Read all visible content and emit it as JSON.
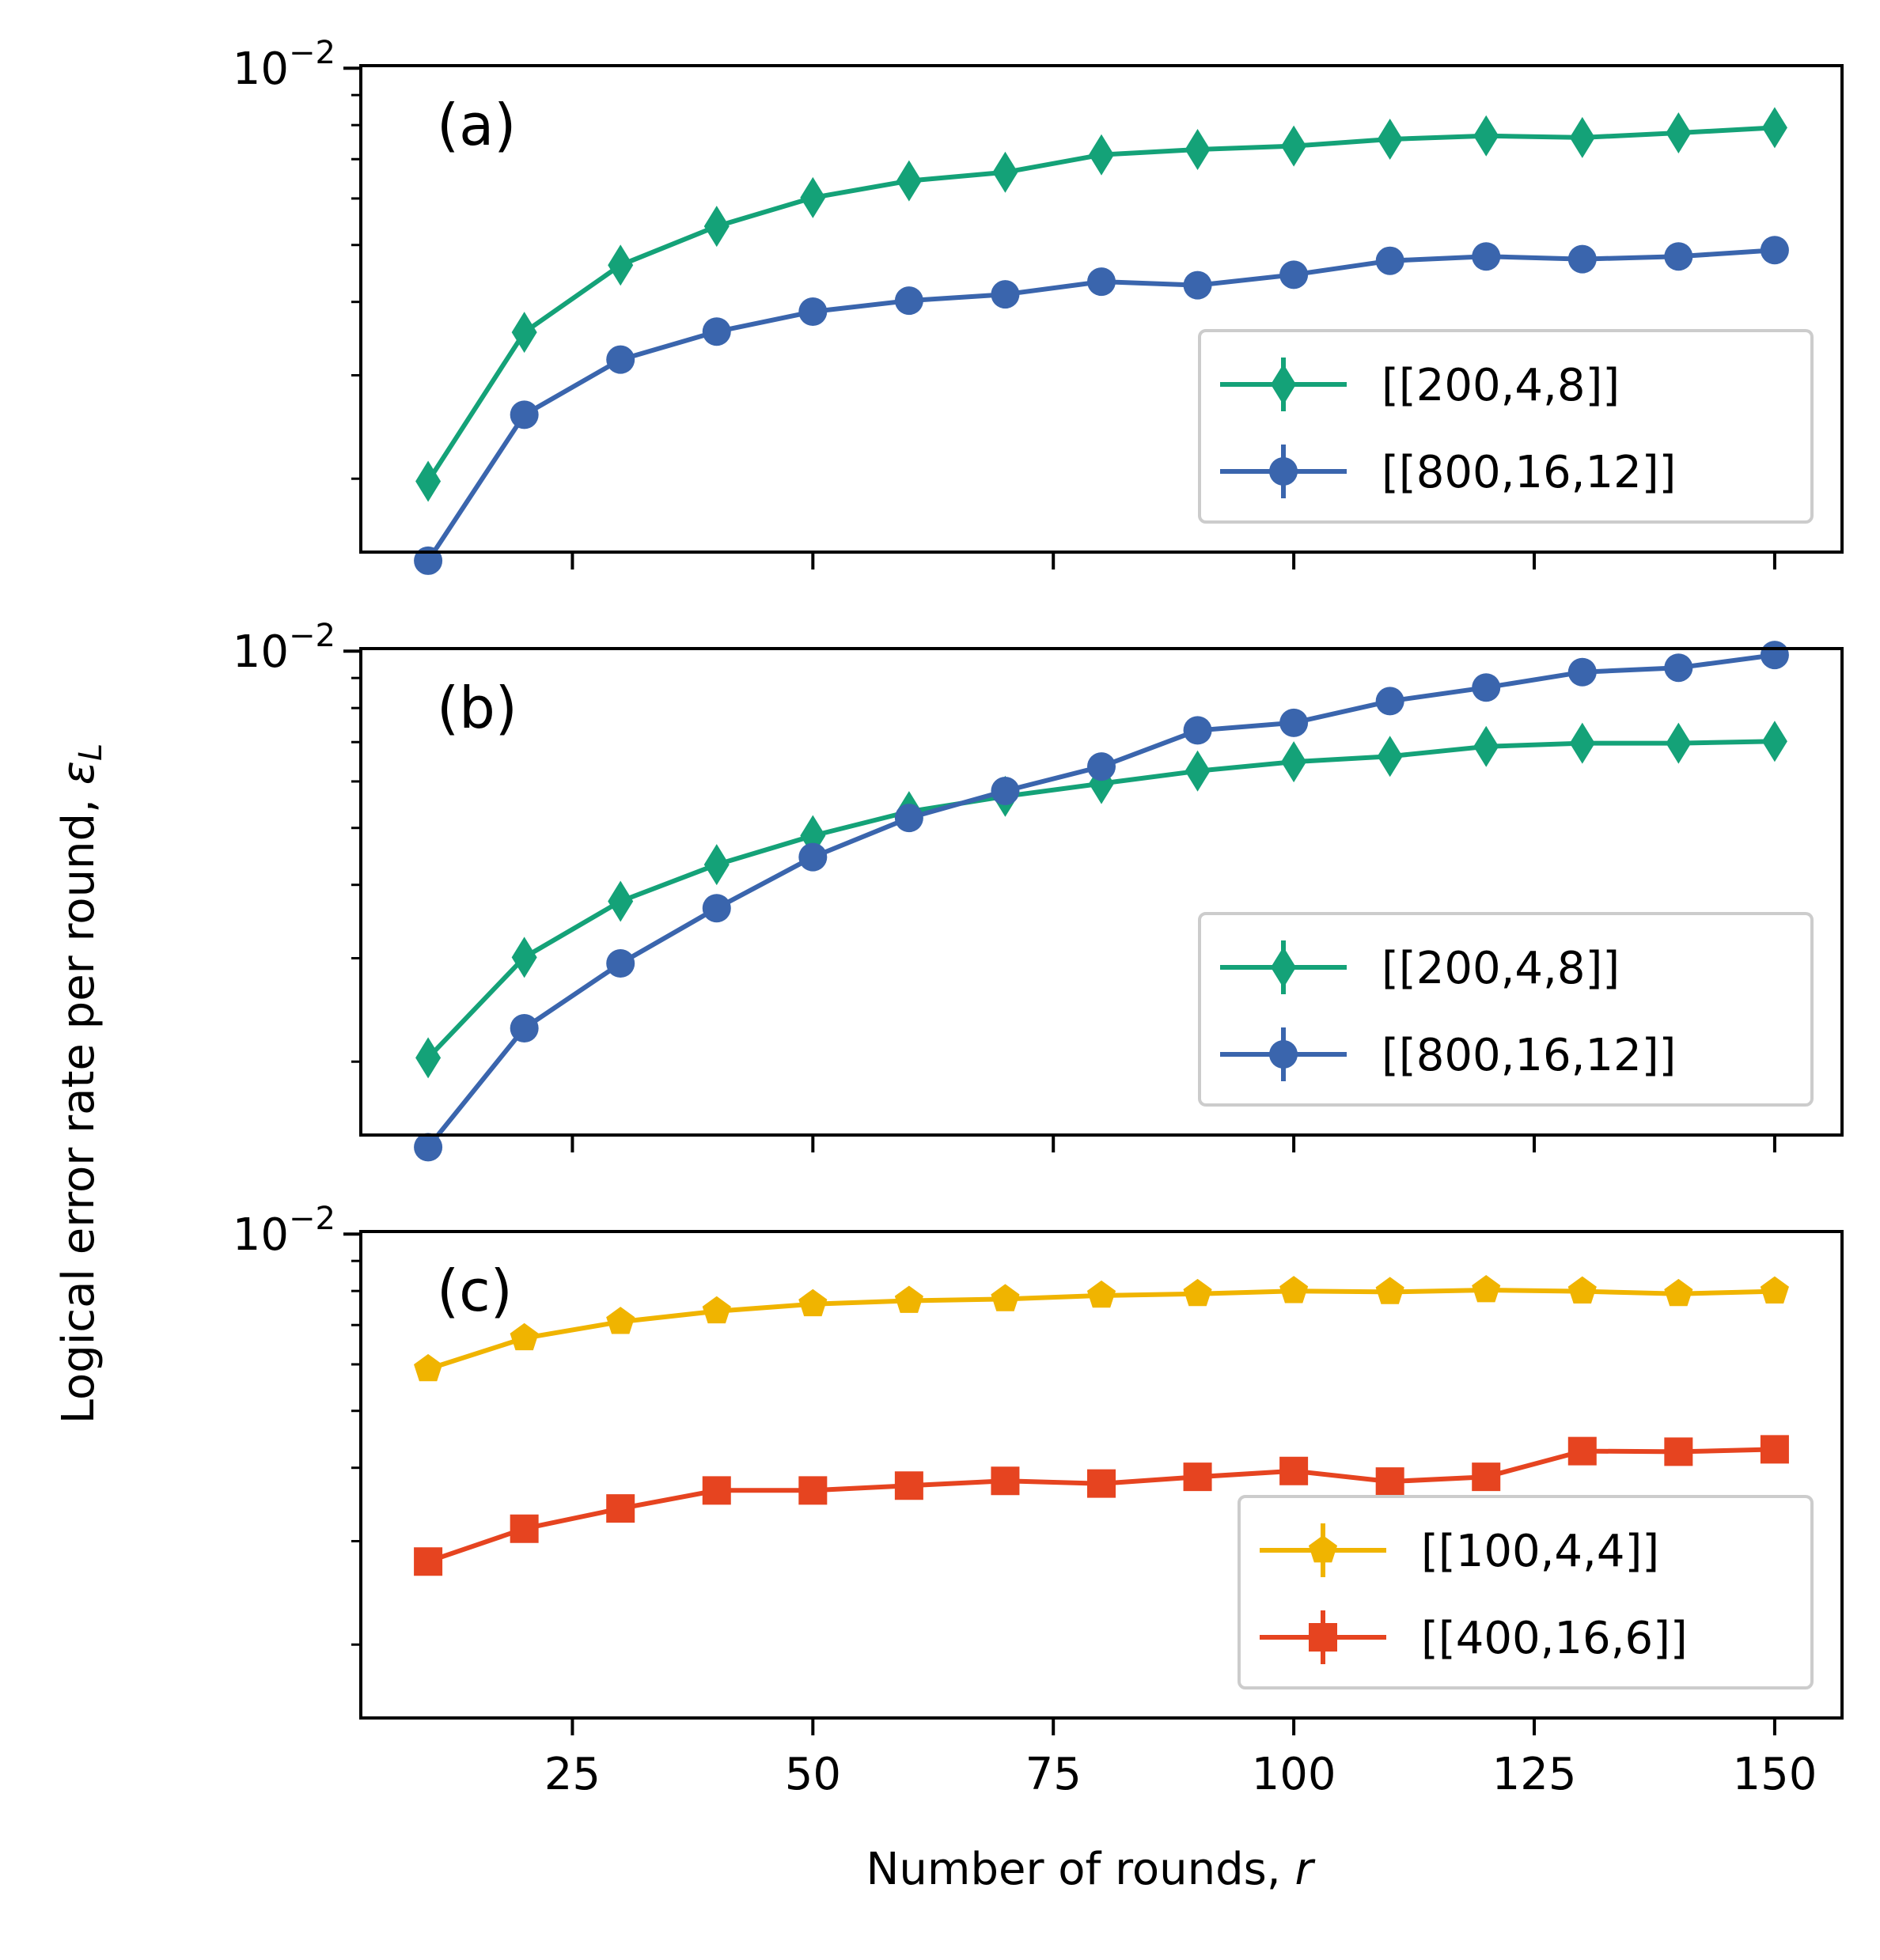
{
  "chart_data": {
    "type": "line",
    "ylabel": "Logical error rate per round, ",
    "ylabel_symbol": "ε",
    "ylabel_subscript": "L",
    "xlabel": "Number of rounds, ",
    "xlabel_symbol": "r",
    "x_ticks": [
      25,
      50,
      75,
      100,
      125,
      150
    ],
    "xlim": [
      3,
      157
    ],
    "yscale": "log",
    "y_tick_label": {
      "base": "10",
      "exponent": "−2"
    },
    "grid": false,
    "panels": [
      {
        "label": "(a)",
        "ylim": [
          0.0015,
          0.0101
        ],
        "legend_position": "lower right",
        "series": [
          {
            "name": "[[200,4,8]]",
            "color": "#14a278",
            "marker": "thin-diamond",
            "x": [
              10,
              20,
              30,
              40,
              50,
              60,
              70,
              80,
              90,
              100,
              110,
              120,
              130,
              140,
              150
            ],
            "y": [
              0.00198,
              0.00355,
              0.00462,
              0.00538,
              0.00602,
              0.00643,
              0.00665,
              0.00712,
              0.00727,
              0.00737,
              0.00757,
              0.00767,
              0.00762,
              0.00776,
              0.00792
            ]
          },
          {
            "name": "[[800,16,12]]",
            "color": "#3a65ad",
            "marker": "circle",
            "x": [
              10,
              20,
              30,
              40,
              50,
              60,
              70,
              80,
              90,
              100,
              110,
              120,
              130,
              140,
              150
            ],
            "y": [
              0.00145,
              0.00257,
              0.00319,
              0.00356,
              0.00385,
              0.00402,
              0.00412,
              0.00433,
              0.00427,
              0.00445,
              0.0047,
              0.00478,
              0.00473,
              0.00478,
              0.0049
            ]
          }
        ]
      },
      {
        "label": "(b)",
        "ylim": [
          0.0015,
          0.0101
        ],
        "legend_position": "lower right",
        "series": [
          {
            "name": "[[200,4,8]]",
            "color": "#14a278",
            "marker": "thin-diamond",
            "x": [
              10,
              20,
              30,
              40,
              50,
              60,
              70,
              80,
              90,
              100,
              110,
              120,
              130,
              140,
              150
            ],
            "y": [
              0.00203,
              0.00301,
              0.00375,
              0.00433,
              0.00485,
              0.00533,
              0.00566,
              0.00595,
              0.00625,
              0.00648,
              0.00662,
              0.00688,
              0.00697,
              0.00697,
              0.00702
            ]
          },
          {
            "name": "[[800,16,12]]",
            "color": "#3a65ad",
            "marker": "circle",
            "x": [
              10,
              20,
              30,
              40,
              50,
              60,
              70,
              80,
              90,
              100,
              110,
              120,
              130,
              140,
              150
            ],
            "y": [
              0.00143,
              0.00228,
              0.00294,
              0.00365,
              0.00446,
              0.0052,
              0.00578,
              0.00636,
              0.00733,
              0.00755,
              0.00822,
              0.00867,
              0.00921,
              0.00937,
              0.00985
            ]
          }
        ]
      },
      {
        "label": "(c)",
        "ylim": [
          0.0015,
          0.0101
        ],
        "legend_position": "lower right",
        "series": [
          {
            "name": "[[100,4,4]]",
            "color": "#f0b400",
            "marker": "pentagon",
            "x": [
              10,
              20,
              30,
              40,
              50,
              60,
              70,
              80,
              90,
              100,
              110,
              120,
              130,
              140,
              150
            ],
            "y": [
              0.00589,
              0.00665,
              0.00709,
              0.00739,
              0.0076,
              0.0077,
              0.00775,
              0.00786,
              0.00791,
              0.008,
              0.00797,
              0.00803,
              0.00799,
              0.00791,
              0.00799
            ]
          },
          {
            "name": "[[400,16,6]]",
            "color": "#e64420",
            "marker": "square",
            "x": [
              10,
              20,
              30,
              40,
              50,
              60,
              70,
              80,
              90,
              100,
              110,
              120,
              130,
              140,
              150
            ],
            "y": [
              0.00277,
              0.00315,
              0.00341,
              0.00366,
              0.00366,
              0.00373,
              0.0038,
              0.00376,
              0.00386,
              0.00395,
              0.00379,
              0.00386,
              0.00427,
              0.00426,
              0.0043
            ]
          }
        ]
      }
    ]
  }
}
